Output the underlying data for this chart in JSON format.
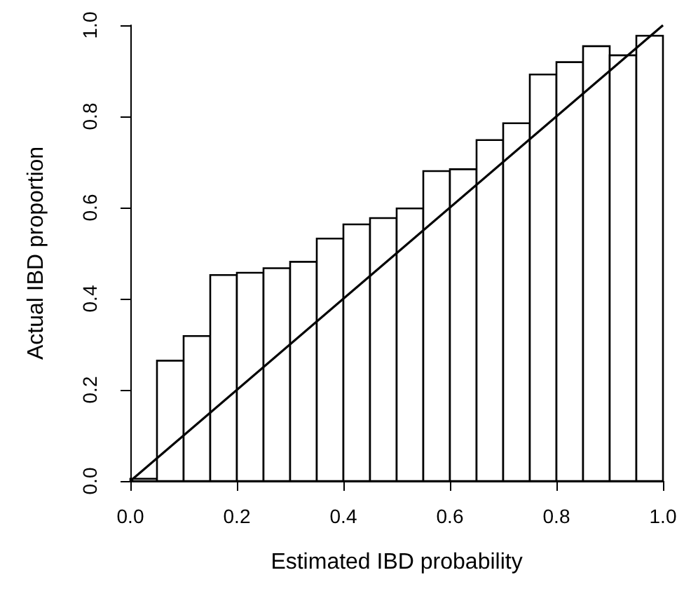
{
  "chart_data": {
    "type": "histogram",
    "xlabel": "Estimated IBD probability",
    "ylabel": "Actual IBD proportion",
    "bins": [
      0,
      0.05,
      0.1,
      0.15,
      0.2,
      0.25,
      0.3,
      0.35,
      0.4,
      0.45,
      0.5,
      0.55,
      0.6,
      0.65,
      0.7,
      0.75,
      0.8,
      0.85,
      0.9,
      0.95,
      1.0
    ],
    "series": [
      {
        "color": "#ffffff",
        "values": [
          0.005,
          0.264,
          0.318,
          0.452,
          0.457,
          0.467,
          0.481,
          0.532,
          0.563,
          0.577,
          0.598,
          0.68,
          0.684,
          0.748,
          0.785,
          0.892,
          0.919,
          0.954,
          0.934,
          0.977
        ]
      },
      {
        "type": "line",
        "color": "#000000",
        "x": [
          0,
          1
        ],
        "values": [
          0,
          1
        ]
      }
    ],
    "xlim": [
      0,
      1
    ],
    "ylim": [
      0,
      1
    ],
    "xticks": [
      {
        "value": 0,
        "label": "0.0"
      },
      0.2,
      0.4,
      0.6,
      0.8,
      {
        "value": 1,
        "label": "1.0"
      }
    ],
    "yticks": [
      {
        "value": 0,
        "label": "0.0"
      },
      0.2,
      0.4,
      0.6,
      0.8,
      {
        "value": 1,
        "label": "1.0"
      }
    ],
    "grid": false,
    "marker": "none",
    "line_style": "solid"
  }
}
